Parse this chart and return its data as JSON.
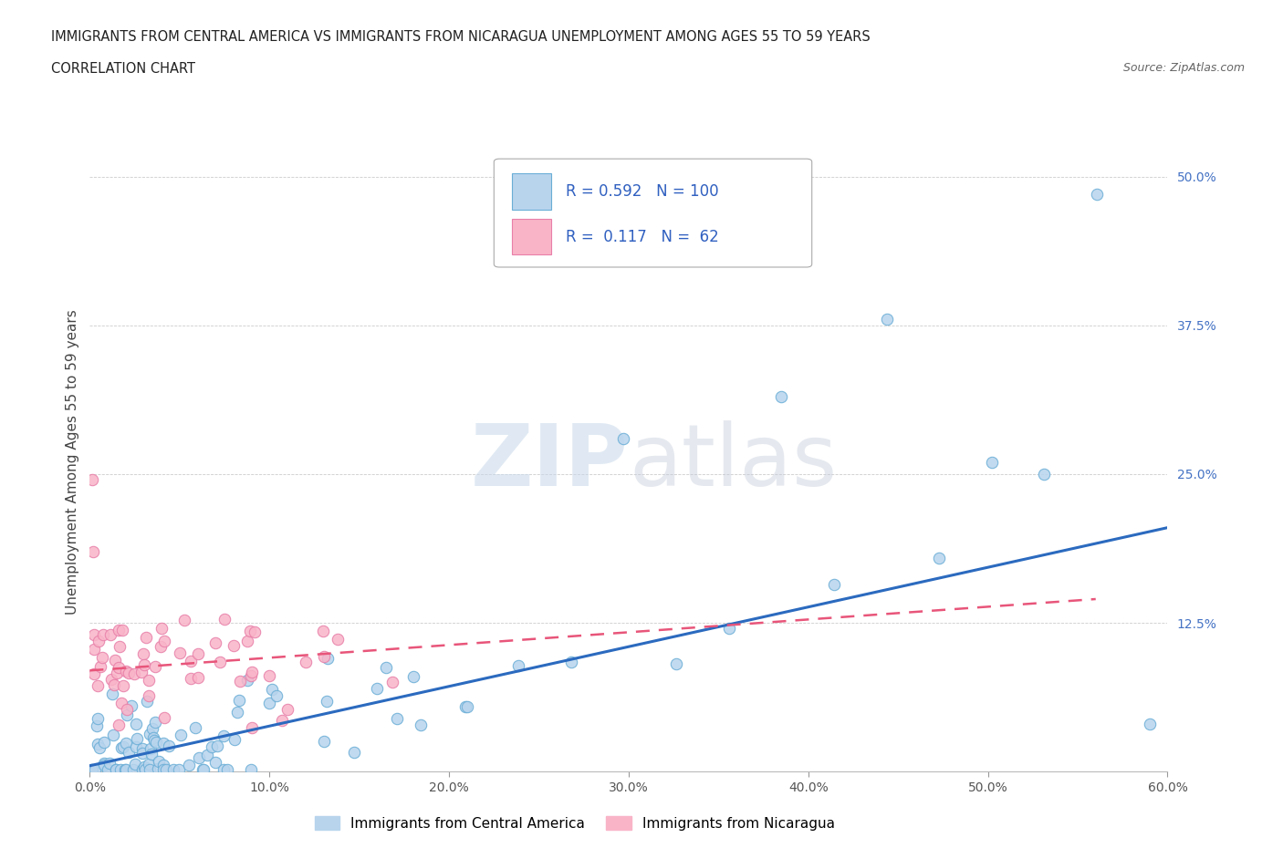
{
  "title_line1": "IMMIGRANTS FROM CENTRAL AMERICA VS IMMIGRANTS FROM NICARAGUA UNEMPLOYMENT AMONG AGES 55 TO 59 YEARS",
  "title_line2": "CORRELATION CHART",
  "source": "Source: ZipAtlas.com",
  "ylabel": "Unemployment Among Ages 55 to 59 years",
  "xlim": [
    0.0,
    0.6
  ],
  "ylim": [
    0.0,
    0.52
  ],
  "xticks": [
    0.0,
    0.1,
    0.2,
    0.3,
    0.4,
    0.5,
    0.6
  ],
  "xticklabels": [
    "0.0%",
    "10.0%",
    "20.0%",
    "30.0%",
    "40.0%",
    "50.0%",
    "60.0%"
  ],
  "yticks": [
    0.0,
    0.125,
    0.25,
    0.375,
    0.5
  ],
  "yticklabels": [
    "",
    "12.5%",
    "25.0%",
    "37.5%",
    "50.0%"
  ],
  "series1_color": "#b8d4ed",
  "series1_edge": "#6aaed6",
  "series2_color": "#f9b4c8",
  "series2_edge": "#e87fa8",
  "line1_color": "#2b6abf",
  "line2_color": "#e8557a",
  "R1": 0.592,
  "N1": 100,
  "R2": 0.117,
  "N2": 62,
  "legend_label1": "Immigrants from Central America",
  "legend_label2": "Immigrants from Nicaragua",
  "line1_x0": 0.0,
  "line1_y0": 0.005,
  "line1_x1": 0.6,
  "line1_y1": 0.205,
  "line2_x0": 0.0,
  "line2_y0": 0.085,
  "line2_x1": 0.56,
  "line2_y1": 0.145
}
